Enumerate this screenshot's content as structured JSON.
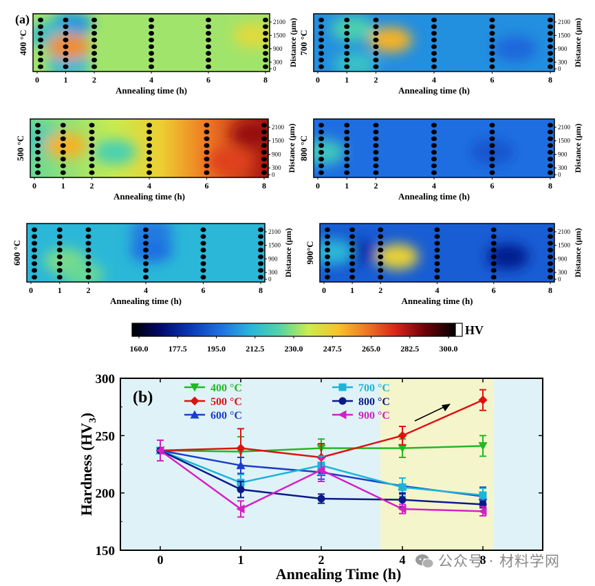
{
  "panel_a": {
    "label": "(a)",
    "xlabel": "Annealing time (h)",
    "ylabel_right": "Distance (μm)",
    "x_ticks": [
      "0",
      "1",
      "2",
      "4",
      "6",
      "8"
    ],
    "y_ticks": [
      "0",
      "300",
      "900",
      "1500",
      "2100"
    ],
    "panels": [
      {
        "temperature": "400 °C",
        "base_hv": 232,
        "hot_spots": [
          {
            "t": 1.1,
            "d": 1000,
            "hv": 258
          },
          {
            "t": 7.6,
            "d": 1500,
            "hv": 242
          }
        ],
        "cool_spots": [
          {
            "t": 1.2,
            "d": 2000,
            "hv": 206
          },
          {
            "t": 1.1,
            "d": 200,
            "hv": 212
          },
          {
            "t": 0.4,
            "d": 1500,
            "hv": 215
          }
        ]
      },
      {
        "temperature": "500 °C",
        "base_hv": 234,
        "trend": "rising to about 280 HV at 8 h",
        "hot_spots": [
          {
            "t": 7.6,
            "d": 1800,
            "hv": 282
          },
          {
            "t": 6.8,
            "d": 600,
            "hv": 270
          },
          {
            "t": 1.1,
            "d": 1300,
            "hv": 252
          }
        ],
        "cool_spots": [
          {
            "t": 0.4,
            "d": 1500,
            "hv": 220
          },
          {
            "t": 2.8,
            "d": 1000,
            "hv": 222
          }
        ]
      },
      {
        "temperature": "600 °C",
        "base_hv": 212,
        "hot_spots": [
          {
            "t": 1.2,
            "d": 800,
            "hv": 228
          },
          {
            "t": 1.8,
            "d": 200,
            "hv": 226
          }
        ],
        "cool_spots": [
          {
            "t": 4.2,
            "d": 1300,
            "hv": 198
          },
          {
            "t": 4.2,
            "d": 2100,
            "hv": 200
          }
        ]
      },
      {
        "temperature": "700 °C",
        "base_hv": 204,
        "hot_spots": [
          {
            "t": 2.5,
            "d": 1300,
            "hv": 252
          },
          {
            "t": 1.2,
            "d": 1800,
            "hv": 222
          },
          {
            "t": 1.3,
            "d": 200,
            "hv": 216
          }
        ],
        "cool_spots": [
          {
            "t": 6.8,
            "d": 900,
            "hv": 196
          }
        ]
      },
      {
        "temperature": "800 °C",
        "base_hv": 198,
        "hot_spots": [
          {
            "t": 0.2,
            "d": 1000,
            "hv": 218
          }
        ],
        "cool_spots": [
          {
            "t": 6.0,
            "d": 1000,
            "hv": 192
          }
        ]
      },
      {
        "temperature": "900°C",
        "base_hv": 194,
        "hot_spots": [
          {
            "t": 2.6,
            "d": 1000,
            "hv": 245
          },
          {
            "t": 0.3,
            "d": 1200,
            "hv": 212
          }
        ],
        "cool_spots": [
          {
            "t": 6.5,
            "d": 1000,
            "hv": 178
          },
          {
            "t": 1.2,
            "d": 1200,
            "hv": 184
          }
        ]
      }
    ]
  },
  "colorbar": {
    "unit": "HV",
    "ticks": [
      "160.0",
      "177.5",
      "195.0",
      "212.5",
      "230.0",
      "247.5",
      "265.0",
      "282.5",
      "300.0"
    ],
    "min": 160,
    "max": 300,
    "stops": [
      "#000000",
      "#000a70",
      "#0a39b8",
      "#1f6fe2",
      "#27b4dc",
      "#50d4a8",
      "#ccec4c",
      "#f7c42a",
      "#ef7622",
      "#d7221b",
      "#6a0008",
      "#000000"
    ]
  },
  "chart_data": {
    "type": "line",
    "label": "(b)",
    "xlabel": "Annealing Time (h)",
    "ylabel": "Hardness (HV",
    "ylabel_sub": "3",
    "ylabel_close": ")",
    "x": [
      0,
      1,
      2,
      4,
      8
    ],
    "x_ticks": [
      "0",
      "1",
      "2",
      "4",
      "8"
    ],
    "y_ticks": [
      "150",
      "200",
      "250",
      "300"
    ],
    "ylim": [
      150,
      300
    ],
    "highlight_x_range": [
      3.7,
      8.4
    ],
    "background_colors": {
      "left": "#dff2f8",
      "highlight": "#f5f5cc"
    },
    "series": [
      {
        "name": "400 °C",
        "color": "#22b822",
        "marker": "triangle-down",
        "values": [
          237,
          236,
          239,
          239,
          241
        ],
        "errors": [
          9,
          13,
          8,
          8,
          9
        ]
      },
      {
        "name": "500 °C",
        "color": "#e01010",
        "marker": "diamond",
        "values": [
          237,
          239,
          231,
          250,
          281
        ],
        "errors": [
          9,
          17,
          12,
          8,
          9
        ]
      },
      {
        "name": "600 °C",
        "color": "#1a3ec8",
        "marker": "triangle-up",
        "values": [
          237,
          224,
          218,
          206,
          197
        ],
        "errors": [
          9,
          7,
          6,
          7,
          8
        ]
      },
      {
        "name": "700 °C",
        "color": "#1cb4d8",
        "marker": "square",
        "values": [
          237,
          209,
          224,
          205,
          198
        ],
        "errors": [
          9,
          7,
          8,
          8,
          6
        ]
      },
      {
        "name": "800 °C",
        "color": "#0a1a8a",
        "marker": "circle",
        "values": [
          237,
          203,
          195,
          194,
          190
        ],
        "errors": [
          9,
          7,
          4,
          6,
          3
        ]
      },
      {
        "name": "900 °C",
        "color": "#d51fc4",
        "marker": "triangle-left",
        "values": [
          237,
          186,
          220,
          186,
          184
        ],
        "errors": [
          9,
          7,
          10,
          4,
          4
        ]
      }
    ]
  },
  "watermark": {
    "text": "公众号 · 材料学网",
    "icon": "wechat-icon"
  }
}
